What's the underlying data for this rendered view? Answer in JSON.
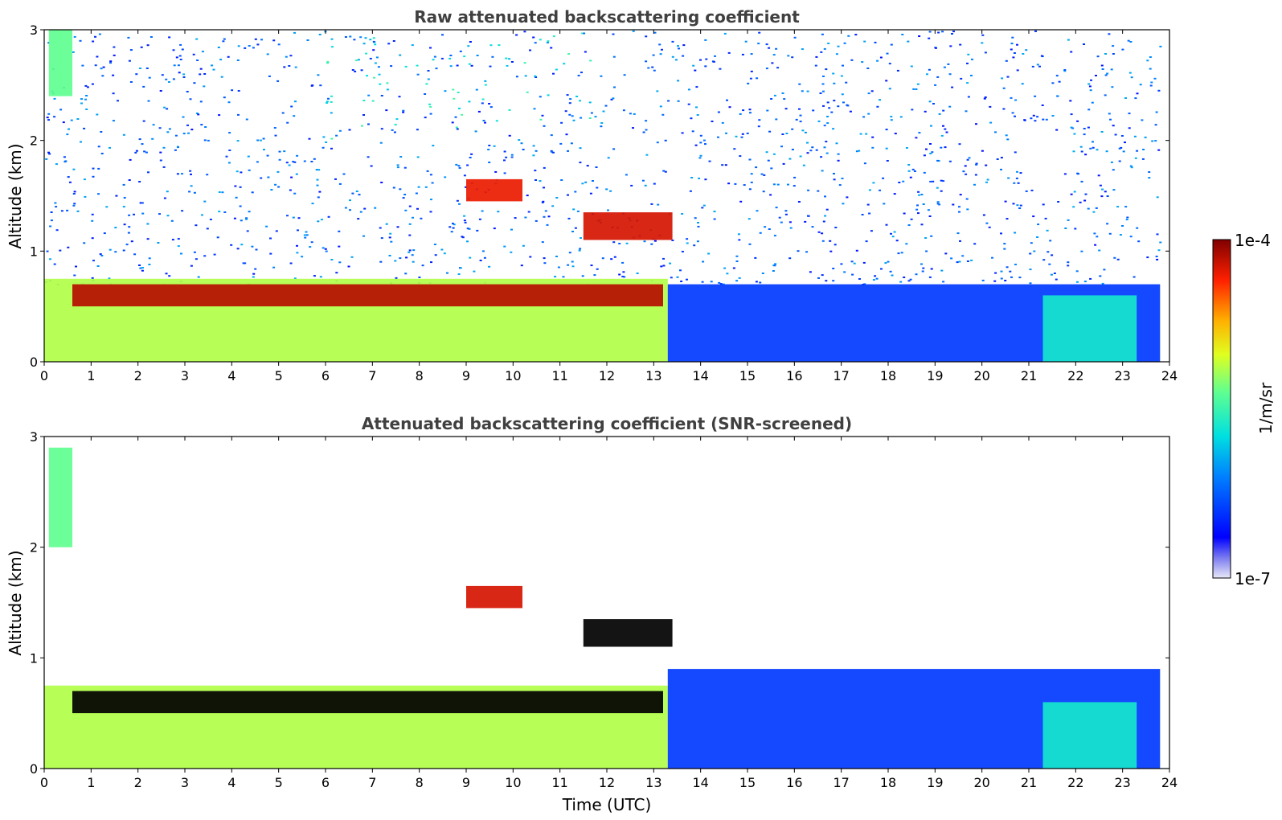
{
  "chart_data": [
    {
      "type": "heatmap",
      "title": "Raw attenuated backscattering coefficient",
      "xlabel": "",
      "ylabel": "Altitude (km)",
      "xlim": [
        0,
        24
      ],
      "ylim": [
        0,
        3
      ],
      "xticks": [
        "0",
        "1",
        "2",
        "3",
        "4",
        "5",
        "6",
        "7",
        "8",
        "9",
        "10",
        "11",
        "12",
        "13",
        "14",
        "15",
        "16",
        "17",
        "18",
        "19",
        "20",
        "21",
        "22",
        "23",
        "24"
      ],
      "yticks": [
        "0",
        "1",
        "2",
        "3"
      ],
      "screened": false,
      "features": [
        {
          "x": [
            0.0,
            13.3
          ],
          "y": [
            0.0,
            0.75
          ],
          "level": 0.62
        },
        {
          "x": [
            0.6,
            13.2
          ],
          "y": [
            0.5,
            0.7
          ],
          "level": 0.95
        },
        {
          "x": [
            13.3,
            23.8
          ],
          "y": [
            0.0,
            0.7
          ],
          "level": 0.2
        },
        {
          "x": [
            0.1,
            0.6
          ],
          "y": [
            2.4,
            3.0
          ],
          "level": 0.55
        },
        {
          "x": [
            9.0,
            10.2
          ],
          "y": [
            1.45,
            1.65
          ],
          "level": 0.9
        },
        {
          "x": [
            11.5,
            13.4
          ],
          "y": [
            1.1,
            1.35
          ],
          "level": 0.92
        },
        {
          "x": [
            21.3,
            23.3
          ],
          "y": [
            0.0,
            0.6
          ],
          "level": 0.45
        }
      ]
    },
    {
      "type": "heatmap",
      "title": "Attenuated backscattering coefficient (SNR-screened)",
      "xlabel": "Time (UTC)",
      "ylabel": "Altitude (km)",
      "xlim": [
        0,
        24
      ],
      "ylim": [
        0,
        3
      ],
      "xticks": [
        "0",
        "1",
        "2",
        "3",
        "4",
        "5",
        "6",
        "7",
        "8",
        "9",
        "10",
        "11",
        "12",
        "13",
        "14",
        "15",
        "16",
        "17",
        "18",
        "19",
        "20",
        "21",
        "22",
        "23",
        "24"
      ],
      "yticks": [
        "0",
        "1",
        "2",
        "3"
      ],
      "screened": true,
      "features": [
        {
          "x": [
            0.0,
            13.3
          ],
          "y": [
            0.0,
            0.75
          ],
          "level": 0.62
        },
        {
          "x": [
            0.6,
            13.2
          ],
          "y": [
            0.5,
            0.7
          ],
          "level": 1.0
        },
        {
          "x": [
            13.3,
            23.8
          ],
          "y": [
            0.0,
            0.9
          ],
          "level": 0.2
        },
        {
          "x": [
            0.1,
            0.6
          ],
          "y": [
            2.0,
            2.9
          ],
          "level": 0.55
        },
        {
          "x": [
            9.0,
            10.2
          ],
          "y": [
            1.45,
            1.65
          ],
          "level": 0.92
        },
        {
          "x": [
            11.5,
            13.4
          ],
          "y": [
            1.1,
            1.35
          ],
          "level": 1.0
        },
        {
          "x": [
            21.3,
            23.3
          ],
          "y": [
            0.0,
            0.6
          ],
          "level": 0.45
        }
      ]
    }
  ],
  "colorbar": {
    "label": "1/m/sr",
    "max_label": "1e-4",
    "min_label": "1e-7",
    "colormap": "jet"
  }
}
